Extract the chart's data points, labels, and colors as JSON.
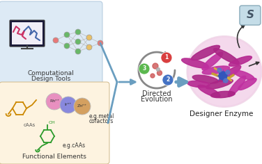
{
  "bg_color": "#ffffff",
  "box1_color": "#ddeaf5",
  "box2_color": "#fdf3e0",
  "box1_text_line1": "Computational",
  "box1_text_line2": "Design Tools",
  "box2_text_line1": "Functional Elements",
  "label_directed": "Directed",
  "label_evolution": "Evolution",
  "label_designer": "Designer Enzyme",
  "label_egmetal1": "e.g.metal",
  "label_egmetal2": "cofactors",
  "label_egcAAs": "e.g.cAAs",
  "label_cAAs": "cAAs",
  "arrow_color": "#6a9ec0",
  "enzyme_pink": "#b03090",
  "enzyme_light_pink": "#f5d5ea",
  "substrate_box_color": "#b8d5e5",
  "substrate_text": "S",
  "circle_colors": [
    "#d94040",
    "#5bb84f",
    "#4472c4"
  ],
  "metal_pink": "#e890c0",
  "metal_blue": "#8888dd",
  "metal_tan": "#d4a060",
  "metal_labels": [
    "Rhⁿ⁺",
    "Irⁿ⁺",
    "Znⁿ⁺"
  ],
  "nn_node_colors": [
    "#e87878",
    "#68b868",
    "#68b868",
    "#e8c068",
    "#e87878"
  ],
  "font_size_label": 6.5,
  "font_size_small": 5.5,
  "font_size_medium": 7.5
}
